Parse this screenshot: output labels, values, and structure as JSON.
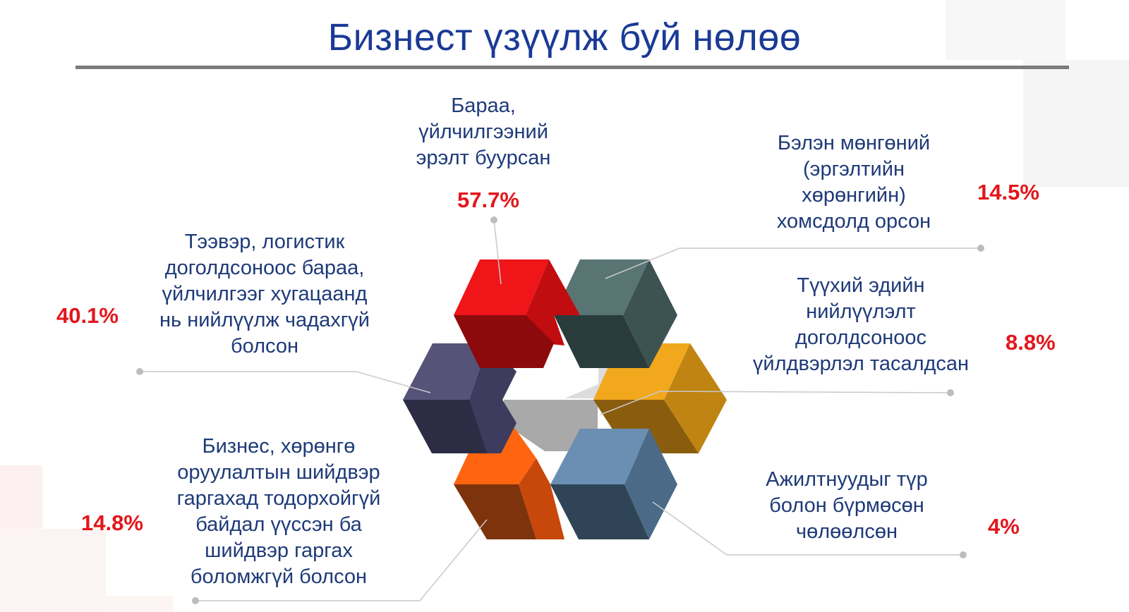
{
  "title": "Бизнест үзүүлж буй нөлөө",
  "colors": {
    "title": "#1a3a96",
    "label": "#1e3a78",
    "percent": "#e3161b",
    "rule": "#7b7b7b"
  },
  "items": [
    {
      "label_lines": [
        "Бараа,",
        "үйлчилгээний",
        "эрэлт буурсан"
      ],
      "percent": "57.7%",
      "color": "#e8141a"
    },
    {
      "label_lines": [
        "Бэлэн мөнгөний",
        "(эргэлтийн",
        "хөрөнгийн)",
        "хомсдолд орсон"
      ],
      "percent": "14.5%",
      "color": "#54706f"
    },
    {
      "label_lines": [
        "Түүхий эдийн",
        "нийлүүлэлт",
        "доголдсоноос",
        "үйлдвэрлэл тасалдсан"
      ],
      "percent": "8.8%",
      "color": "#e8a01b"
    },
    {
      "label_lines": [
        "Ажилтнуудыг түр",
        "болон бүрмөсөн",
        "чөлөөлсөн"
      ],
      "percent": "4%",
      "color": "#5f84a8"
    },
    {
      "label_lines": [
        "Бизнес, хөрөнгө",
        "оруулалтын шийдвэр",
        "гаргахад тодорхойгүй",
        "байдал үүссэн ба",
        "шийдвэр гаргах",
        "боломжгүй болсон"
      ],
      "percent": "14.8%",
      "color": "#f2620f"
    },
    {
      "label_lines": [
        "Тээвэр, логистик",
        "доголдсоноос бараа,",
        "үйлчилгээг хугацаанд",
        "нь нийлүүлж чадахгүй",
        "болсон"
      ],
      "percent": "40.1%",
      "color": "#52507a"
    }
  ]
}
